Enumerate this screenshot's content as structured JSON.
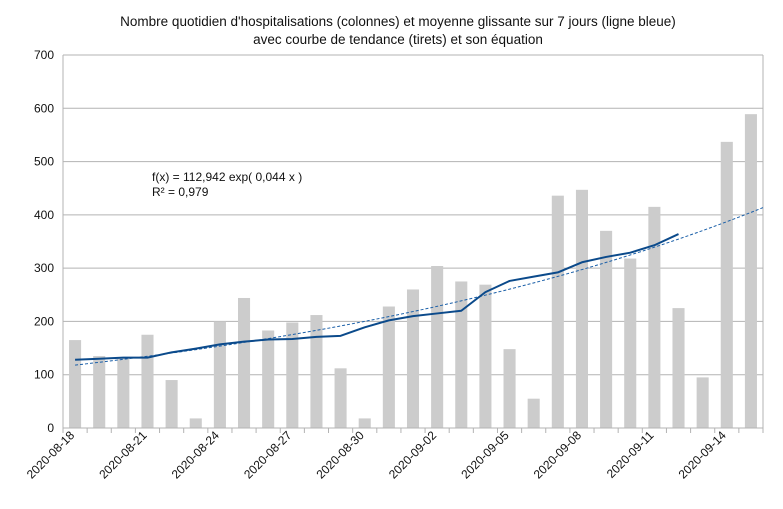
{
  "chart_data": {
    "type": "bar",
    "title": [
      "Nombre quotidien d'hospitalisations (colonnes) et moyenne glissante sur 7 jours (ligne bleue)",
      "avec courbe de tendance (tirets) et son équation"
    ],
    "xlabel": "",
    "ylabel": "",
    "ylim": [
      0,
      700
    ],
    "yticks": [
      "0",
      "100",
      "200",
      "300",
      "400",
      "500",
      "600",
      "700"
    ],
    "grid": "horizontal",
    "legend": "none",
    "categories": [
      "2020-08-18",
      "2020-08-19",
      "2020-08-20",
      "2020-08-21",
      "2020-08-22",
      "2020-08-23",
      "2020-08-24",
      "2020-08-25",
      "2020-08-26",
      "2020-08-27",
      "2020-08-28",
      "2020-08-29",
      "2020-08-30",
      "2020-08-31",
      "2020-09-01",
      "2020-09-02",
      "2020-09-03",
      "2020-09-04",
      "2020-09-05",
      "2020-09-06",
      "2020-09-07",
      "2020-09-08",
      "2020-09-09",
      "2020-09-10",
      "2020-09-11",
      "2020-09-12",
      "2020-09-13",
      "2020-09-14",
      "2020-09-15"
    ],
    "tick_labels": [
      "2020-08-18",
      "",
      "",
      "2020-08-21",
      "",
      "",
      "2020-08-24",
      "",
      "",
      "2020-08-27",
      "",
      "",
      "2020-08-30",
      "",
      "",
      "2020-09-02",
      "",
      "",
      "2020-09-05",
      "",
      "",
      "2020-09-08",
      "",
      "",
      "2020-09-11",
      "",
      "",
      "2020-09-14",
      ""
    ],
    "series": [
      {
        "kind": "bar",
        "color": "#cccccc",
        "values": [
          165,
          135,
          133,
          175,
          90,
          18,
          200,
          244,
          183,
          198,
          212,
          112,
          18,
          228,
          260,
          304,
          275,
          269,
          148,
          55,
          436,
          447,
          370,
          318,
          415,
          225,
          95,
          537,
          589
        ]
      },
      {
        "kind": "line",
        "color": "#0b4a8b",
        "values": [
          128,
          130,
          132,
          132,
          142,
          149,
          157,
          162,
          166,
          167,
          171,
          173,
          189,
          202,
          210,
          215,
          220,
          255,
          276,
          284,
          292,
          311,
          321,
          329,
          343,
          364,
          null,
          null,
          null
        ]
      },
      {
        "kind": "trend",
        "color": "#1a5fa8",
        "style": "dashed",
        "a": 112.942,
        "b": 0.044
      }
    ],
    "annotations": [
      "f(x) = 112,942 exp( 0,044 x )",
      "R² = 0,979"
    ]
  }
}
